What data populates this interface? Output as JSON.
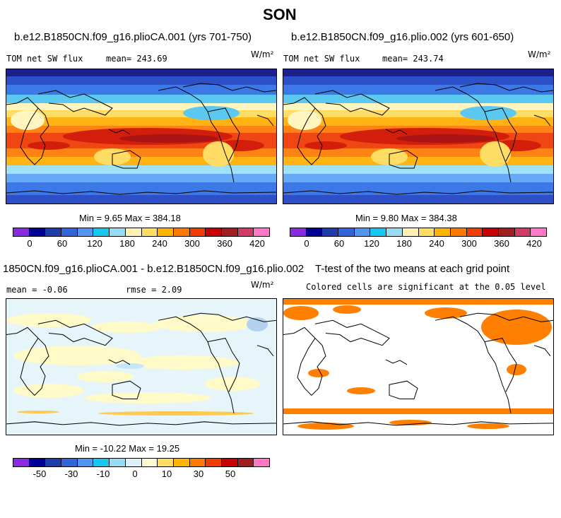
{
  "title": "SON",
  "panels": [
    {
      "id": "p1",
      "title": "b.e12.B1850CN.f09_g16.plioCA.001 (yrs 701-750)",
      "left_label": "TOM net SW flux",
      "right_label": "mean= 243.69",
      "units": "W/m²",
      "min_max": "Min =   9.65 Max = 384.18"
    },
    {
      "id": "p2",
      "title": "b.e12.B1850CN.f09_g16.plio.002 (yrs 601-650)",
      "left_label": "TOM net SW flux",
      "right_label": "mean= 243.74",
      "units": "W/m²",
      "min_max": "Min =   9.80 Max = 384.38"
    },
    {
      "id": "p3",
      "title": "1850CN.f09_g16.plioCA.001 - b.e12.B1850CN.f09_g16.plio.002",
      "left_label": "mean =  -0.06",
      "right_label": "rmse =   2.09",
      "units": "W/m²",
      "min_max": "Min = -10.22 Max =  19.25"
    },
    {
      "id": "p4",
      "title": "T-test of the two means at each grid point",
      "subtitle": "Colored cells are significant at the 0.05 level"
    }
  ],
  "colorbar_abs": {
    "colors": [
      "#8a2be2",
      "#000096",
      "#1e3caa",
      "#3264dc",
      "#5096f0",
      "#14c8f0",
      "#96dcf5",
      "#fff0b4",
      "#ffdc64",
      "#ffb400",
      "#ff7800",
      "#f03c00",
      "#c80000",
      "#a01e1e",
      "#d23c64",
      "#ff78c8"
    ],
    "ticks": [
      "0",
      "60",
      "120",
      "180",
      "240",
      "300",
      "360",
      "420"
    ]
  },
  "colorbar_diff": {
    "colors": [
      "#8a2be2",
      "#000096",
      "#1e3caa",
      "#3264dc",
      "#5096f0",
      "#14c8f0",
      "#96dcf5",
      "#dcf0fa",
      "#fffad2",
      "#ffdc64",
      "#ffb400",
      "#ff7800",
      "#f03c00",
      "#c80000",
      "#a01e1e",
      "#ff78c8"
    ],
    "ticks": [
      "-50",
      "-30",
      "-10",
      "0",
      "10",
      "30",
      "50"
    ]
  },
  "map_colors": {
    "dark_navy": "#1e1e8c",
    "deep_blue": "#2d50c8",
    "blue": "#3c78e6",
    "light_blue": "#64aaf5",
    "cyan": "#5ac8f0",
    "pale_cyan": "#a0e1f5",
    "pale_yellow": "#fff5be",
    "yellow": "#ffdc64",
    "gold": "#ffb414",
    "orange": "#ff8214",
    "red_orange": "#f04614",
    "red": "#d21e0a",
    "dark_red": "#aa1414",
    "diff_bg": "#e6f5fa",
    "diff_yellow": "#fffac8",
    "diff_orange": "#ffc850",
    "sig_orange": "#ff7f00"
  }
}
